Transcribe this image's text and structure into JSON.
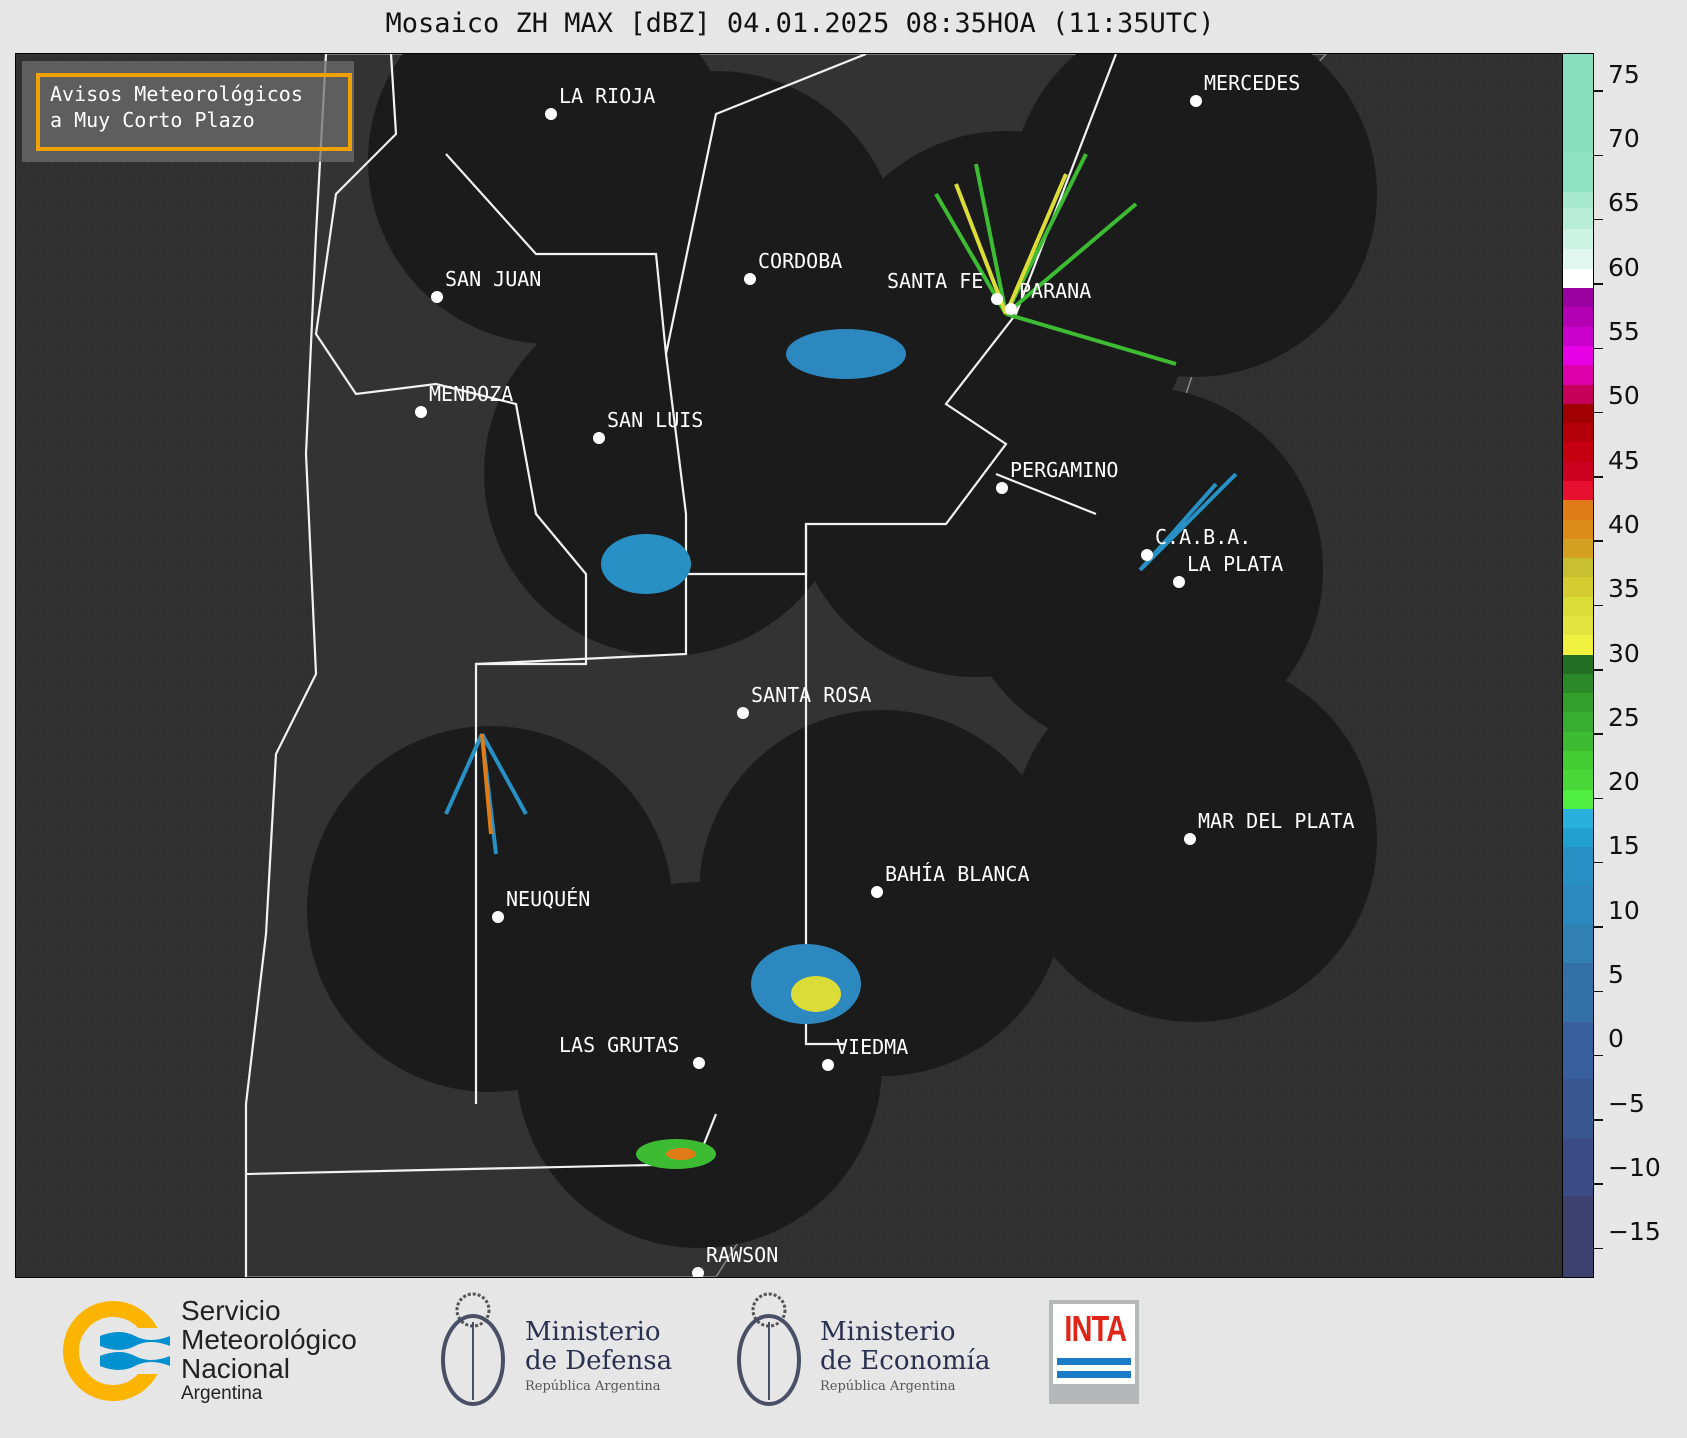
{
  "title": "Mosaico ZH MAX [dBZ] 04.01.2025 08:35HOA (11:35UTC)",
  "legend_box": {
    "line1": "Avisos Meteorológicos",
    "line2": "a Muy Corto Plazo",
    "border_color": "#f0a000"
  },
  "cities": [
    {
      "name": "LA RIOJA"
    },
    {
      "name": "SAN JUAN"
    },
    {
      "name": "MENDOZA"
    },
    {
      "name": "SAN LUIS"
    },
    {
      "name": "CORDOBA"
    },
    {
      "name": "SANTA FE"
    },
    {
      "name": "PARANA"
    },
    {
      "name": "MERCEDES"
    },
    {
      "name": "PERGAMINO"
    },
    {
      "name": "C.A.B.A."
    },
    {
      "name": "LA PLATA"
    },
    {
      "name": "SANTA ROSA"
    },
    {
      "name": "MAR DEL PLATA"
    },
    {
      "name": "BAHÍA BLANCA"
    },
    {
      "name": "NEUQUÉN"
    },
    {
      "name": "LAS GRUTAS"
    },
    {
      "name": "VIEDMA"
    },
    {
      "name": "RAWSON"
    }
  ],
  "colorbar": {
    "unit": "dBZ",
    "range": [
      -18.4,
      76.7
    ],
    "ticks": [
      "75",
      "70",
      "65",
      "60",
      "55",
      "50",
      "45",
      "40",
      "35",
      "30",
      "25",
      "20",
      "15",
      "10",
      "5",
      "0",
      "−5",
      "−10",
      "−15"
    ],
    "tick_values": [
      75,
      70,
      65,
      60,
      55,
      50,
      45,
      40,
      35,
      30,
      25,
      20,
      15,
      10,
      5,
      0,
      -5,
      -10,
      -15
    ],
    "segments": [
      {
        "from": 69.1,
        "to": 76.7,
        "color": "#88dfc0"
      },
      {
        "from": 66,
        "to": 69.1,
        "color": "#90e2c5"
      },
      {
        "from": 64.7,
        "to": 66,
        "color": "#a8eacf"
      },
      {
        "from": 63.1,
        "to": 64.7,
        "color": "#b8eed8"
      },
      {
        "from": 61.5,
        "to": 63.1,
        "color": "#cdf3e4"
      },
      {
        "from": 60,
        "to": 61.5,
        "color": "#dff7ee"
      },
      {
        "from": 58.5,
        "to": 60,
        "color": "#ffffff"
      },
      {
        "from": 57,
        "to": 58.5,
        "color": "#9b00a0"
      },
      {
        "from": 55.5,
        "to": 57,
        "color": "#b400b4"
      },
      {
        "from": 54,
        "to": 55.5,
        "color": "#cc00cc"
      },
      {
        "from": 52.5,
        "to": 54,
        "color": "#e600e6"
      },
      {
        "from": 51,
        "to": 52.5,
        "color": "#dd00aa"
      },
      {
        "from": 49.5,
        "to": 51,
        "color": "#c4005a"
      },
      {
        "from": 48,
        "to": 49.5,
        "color": "#a00000"
      },
      {
        "from": 46.5,
        "to": 48,
        "color": "#b40008"
      },
      {
        "from": 45,
        "to": 46.5,
        "color": "#c40010"
      },
      {
        "from": 43.5,
        "to": 45,
        "color": "#cc0020"
      },
      {
        "from": 42,
        "to": 43.5,
        "color": "#e81030"
      },
      {
        "from": 40.5,
        "to": 42,
        "color": "#e07c18"
      },
      {
        "from": 39,
        "to": 40.5,
        "color": "#dc8c18"
      },
      {
        "from": 37.5,
        "to": 39,
        "color": "#d4a020"
      },
      {
        "from": 36,
        "to": 37.5,
        "color": "#c8c030"
      },
      {
        "from": 34.5,
        "to": 36,
        "color": "#d4cc30"
      },
      {
        "from": 33,
        "to": 34.5,
        "color": "#dcdc38"
      },
      {
        "from": 31.5,
        "to": 33,
        "color": "#e4e440"
      },
      {
        "from": 30,
        "to": 31.5,
        "color": "#f0f040"
      },
      {
        "from": 28.5,
        "to": 30,
        "color": "#226e22"
      },
      {
        "from": 27,
        "to": 28.5,
        "color": "#2a8a2a"
      },
      {
        "from": 25.5,
        "to": 27,
        "color": "#33a02c"
      },
      {
        "from": 24,
        "to": 25.5,
        "color": "#38ad30"
      },
      {
        "from": 22.5,
        "to": 24,
        "color": "#3dbb33"
      },
      {
        "from": 21,
        "to": 22.5,
        "color": "#44cc33"
      },
      {
        "from": 19.5,
        "to": 21,
        "color": "#48d838"
      },
      {
        "from": 18,
        "to": 19.5,
        "color": "#50ee40"
      },
      {
        "from": 16.5,
        "to": 18,
        "color": "#2ab0dc"
      },
      {
        "from": 15,
        "to": 16.5,
        "color": "#22a0d0"
      },
      {
        "from": 12,
        "to": 15,
        "color": "#2890c4"
      },
      {
        "from": 9,
        "to": 12,
        "color": "#2e88c0"
      },
      {
        "from": 6,
        "to": 9,
        "color": "#3080b4"
      },
      {
        "from": 1.4,
        "to": 6,
        "color": "#3470a8"
      },
      {
        "from": -3,
        "to": 1.4,
        "color": "#38609c"
      },
      {
        "from": -7.6,
        "to": -3,
        "color": "#3a5690"
      },
      {
        "from": -12.1,
        "to": -7.6,
        "color": "#3c4c84"
      },
      {
        "from": -18.4,
        "to": -12.1,
        "color": "#3e4070"
      }
    ]
  },
  "logos": {
    "smn": {
      "line1": "Servicio",
      "line2": "Meteorológico",
      "line3": "Nacional",
      "line4": "Argentina"
    },
    "defensa": {
      "line1": "Ministerio",
      "line2": "de Defensa",
      "line3": "República Argentina"
    },
    "economia": {
      "line1": "Ministerio",
      "line2": "de Economía",
      "line3": "República Argentina"
    },
    "inta": {
      "text": "INTA"
    }
  }
}
